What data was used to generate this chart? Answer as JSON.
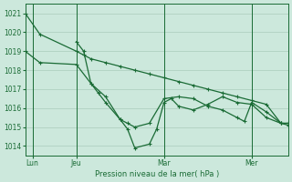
{
  "bg_color": "#cce8dc",
  "grid_color": "#aaccbb",
  "line_color": "#1a6b35",
  "title": "Pression niveau de la mer( hPa )",
  "ylim": [
    1013.5,
    1021.5
  ],
  "yticks": [
    1014,
    1015,
    1016,
    1017,
    1018,
    1019,
    1020,
    1021
  ],
  "xlim": [
    0,
    72
  ],
  "xtick_positions": [
    2,
    14,
    38,
    62
  ],
  "xtick_labels": [
    "Lun",
    "Jeu",
    "Mar",
    "Mer"
  ],
  "vline_positions": [
    2,
    14,
    38,
    62
  ],
  "series1_x": [
    0,
    4,
    14,
    16,
    18,
    22,
    26,
    30,
    34,
    38,
    42,
    46,
    50,
    54,
    58,
    62,
    66,
    70,
    72
  ],
  "series1_y": [
    1021.0,
    1019.9,
    1019.0,
    1018.8,
    1018.6,
    1018.4,
    1018.2,
    1018.0,
    1017.8,
    1017.6,
    1017.4,
    1017.2,
    1017.0,
    1016.8,
    1016.6,
    1016.4,
    1016.2,
    1015.2,
    1015.1
  ],
  "series2_x": [
    0,
    4,
    14,
    18,
    22,
    26,
    28,
    30,
    34,
    36,
    38,
    40,
    42,
    46,
    50,
    54,
    58,
    62,
    66,
    70,
    72
  ],
  "series2_y": [
    1019.0,
    1018.4,
    1018.3,
    1017.3,
    1016.6,
    1015.4,
    1014.9,
    1013.9,
    1014.1,
    1014.9,
    1016.3,
    1016.5,
    1016.1,
    1015.9,
    1016.2,
    1016.6,
    1016.3,
    1016.2,
    1015.5,
    1015.2,
    1015.2
  ],
  "series3_x": [
    14,
    16,
    18,
    20,
    22,
    26,
    28,
    30,
    34,
    38,
    42,
    46,
    50,
    54,
    58,
    60,
    62,
    66,
    70,
    72
  ],
  "series3_y": [
    1019.5,
    1019.0,
    1017.3,
    1016.8,
    1016.3,
    1015.4,
    1015.2,
    1015.0,
    1015.2,
    1016.5,
    1016.6,
    1016.5,
    1016.1,
    1015.9,
    1015.5,
    1015.3,
    1016.3,
    1015.8,
    1015.2,
    1015.2
  ]
}
